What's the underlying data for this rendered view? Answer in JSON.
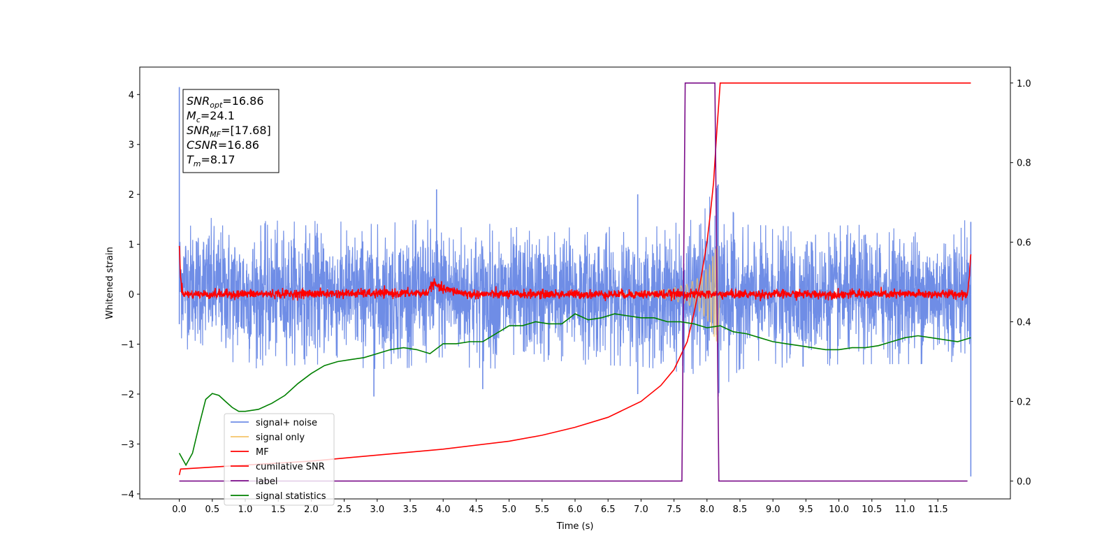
{
  "chart_data": {
    "type": "line",
    "title": "",
    "xlabel": "Time (s)",
    "ylabel": "Whitened strain",
    "xlim": [
      -0.6,
      12.6
    ],
    "ylim": [
      -4.1,
      4.55
    ],
    "y2lim": [
      -0.045,
      1.04
    ],
    "x_ticks": [
      0.0,
      0.5,
      1.0,
      1.5,
      2.0,
      2.5,
      3.0,
      3.5,
      4.0,
      4.5,
      5.0,
      5.5,
      6.0,
      6.5,
      7.0,
      7.5,
      8.0,
      8.5,
      9.0,
      9.5,
      10.0,
      10.5,
      11.0,
      11.5
    ],
    "x_tick_labels": [
      "0.0",
      "0.5",
      "1.0",
      "1.5",
      "2.0",
      "2.5",
      "3.0",
      "3.5",
      "4.0",
      "4.5",
      "5.0",
      "5.5",
      "6.0",
      "6.5",
      "7.0",
      "7.5",
      "8.0",
      "8.5",
      "9.0",
      "9.5",
      "10.0",
      "10.5",
      "11.0",
      "11.5"
    ],
    "y_ticks": [
      -4,
      -3,
      -2,
      -1,
      0,
      1,
      2,
      3,
      4
    ],
    "y_tick_labels": [
      "−4",
      "−3",
      "−2",
      "−1",
      "0",
      "1",
      "2",
      "3",
      "4"
    ],
    "y2_ticks": [
      0.0,
      0.2,
      0.4,
      0.6,
      0.8,
      1.0
    ],
    "y2_tick_labels": [
      "0.0",
      "0.2",
      "0.4",
      "0.6",
      "0.8",
      "1.0"
    ],
    "grid": false,
    "legend_position": "lower-left",
    "annotation": [
      {
        "base": "SNR",
        "sub": "opt",
        "rest": "=16.86"
      },
      {
        "base": "M",
        "sub": "c",
        "rest": "=24.1"
      },
      {
        "base": "SNR",
        "sub": "MF",
        "rest": "=[17.68]"
      },
      {
        "base": "CSNR",
        "sub": "",
        "rest": "=16.86"
      },
      {
        "base": "T",
        "sub": "m",
        "rest": "=8.17"
      }
    ],
    "series": [
      {
        "name": "signal+ noise",
        "axis": "left",
        "color": "#6f8de6",
        "kind": "noise",
        "x_range": [
          0.0,
          12.0
        ],
        "band_hi": [
          [
            0.0,
            1.6
          ],
          [
            1.0,
            1.45
          ],
          [
            2.0,
            1.5
          ],
          [
            3.0,
            1.4
          ],
          [
            4.0,
            1.55
          ],
          [
            5.0,
            1.35
          ],
          [
            6.0,
            1.4
          ],
          [
            7.0,
            1.3
          ],
          [
            7.8,
            1.5
          ],
          [
            8.17,
            2.2
          ],
          [
            8.5,
            1.4
          ],
          [
            9.5,
            1.35
          ],
          [
            10.5,
            1.4
          ],
          [
            11.5,
            1.4
          ],
          [
            12.0,
            1.5
          ]
        ],
        "band_lo": [
          [
            0.0,
            -1.05
          ],
          [
            1.0,
            -1.5
          ],
          [
            2.0,
            -1.4
          ],
          [
            3.0,
            -1.5
          ],
          [
            4.0,
            -1.45
          ],
          [
            5.0,
            -1.5
          ],
          [
            6.0,
            -1.4
          ],
          [
            7.0,
            -1.45
          ],
          [
            7.8,
            -1.6
          ],
          [
            8.17,
            -2.0
          ],
          [
            8.5,
            -1.5
          ],
          [
            9.5,
            -1.45
          ],
          [
            10.5,
            -1.4
          ],
          [
            11.5,
            -1.4
          ],
          [
            12.0,
            -1.3
          ]
        ],
        "spikes": [
          [
            0.0,
            4.15
          ],
          [
            0.0,
            -0.6
          ],
          [
            3.9,
            2.1
          ],
          [
            2.95,
            -2.05
          ],
          [
            4.6,
            -1.9
          ],
          [
            6.95,
            2.0
          ],
          [
            6.95,
            -2.0
          ],
          [
            8.17,
            2.2
          ],
          [
            8.17,
            -2.05
          ],
          [
            12.0,
            -3.65
          ],
          [
            12.0,
            1.45
          ]
        ]
      },
      {
        "name": "signal only",
        "axis": "left",
        "color": "#f5c56a",
        "kind": "chirp",
        "x_range": [
          6.6,
          8.2
        ],
        "envelope": [
          [
            6.6,
            0.02
          ],
          [
            7.0,
            0.05
          ],
          [
            7.4,
            0.1
          ],
          [
            7.7,
            0.2
          ],
          [
            7.9,
            0.35
          ],
          [
            8.05,
            0.6
          ],
          [
            8.12,
            0.9
          ],
          [
            8.17,
            1.0
          ],
          [
            8.2,
            0.0
          ]
        ]
      },
      {
        "name": "MF",
        "axis": "left",
        "color": "#ff0000",
        "kind": "mf",
        "x_range": [
          0.0,
          12.0
        ],
        "points": [
          [
            0.0,
            1.0
          ],
          [
            0.02,
            0.3
          ],
          [
            0.05,
            0.05
          ],
          [
            0.1,
            0.0
          ],
          [
            3.75,
            0.02
          ],
          [
            3.85,
            0.22
          ],
          [
            3.95,
            0.12
          ],
          [
            4.2,
            0.05
          ],
          [
            4.4,
            0.0
          ],
          [
            11.95,
            0.0
          ],
          [
            11.98,
            0.4
          ],
          [
            12.0,
            0.85
          ]
        ]
      },
      {
        "name": "cumilative SNR",
        "axis": "right",
        "color": "#ff0000",
        "kind": "line",
        "points": [
          [
            0.0,
            0.015
          ],
          [
            0.02,
            0.03
          ],
          [
            1.0,
            0.04
          ],
          [
            2.0,
            0.05
          ],
          [
            3.0,
            0.065
          ],
          [
            4.0,
            0.08
          ],
          [
            5.0,
            0.1
          ],
          [
            5.5,
            0.115
          ],
          [
            6.0,
            0.135
          ],
          [
            6.5,
            0.16
          ],
          [
            7.0,
            0.2
          ],
          [
            7.3,
            0.24
          ],
          [
            7.5,
            0.28
          ],
          [
            7.7,
            0.35
          ],
          [
            7.8,
            0.42
          ],
          [
            7.9,
            0.5
          ],
          [
            8.0,
            0.6
          ],
          [
            8.05,
            0.67
          ],
          [
            8.1,
            0.75
          ],
          [
            8.15,
            0.88
          ],
          [
            8.2,
            1.0
          ],
          [
            12.0,
            1.0
          ]
        ]
      },
      {
        "name": "label",
        "axis": "right",
        "color": "#7b0d8a",
        "kind": "line",
        "points": [
          [
            0.0,
            0.0
          ],
          [
            7.62,
            0.0
          ],
          [
            7.67,
            1.0
          ],
          [
            8.12,
            1.0
          ],
          [
            8.18,
            0.0
          ],
          [
            11.95,
            0.0
          ]
        ]
      },
      {
        "name": "signal statistics",
        "axis": "right",
        "color": "#008000",
        "kind": "line",
        "points": [
          [
            0.0,
            0.07
          ],
          [
            0.1,
            0.04
          ],
          [
            0.2,
            0.07
          ],
          [
            0.3,
            0.14
          ],
          [
            0.4,
            0.205
          ],
          [
            0.5,
            0.22
          ],
          [
            0.6,
            0.215
          ],
          [
            0.7,
            0.2
          ],
          [
            0.8,
            0.185
          ],
          [
            0.9,
            0.175
          ],
          [
            1.0,
            0.175
          ],
          [
            1.2,
            0.18
          ],
          [
            1.4,
            0.195
          ],
          [
            1.6,
            0.215
          ],
          [
            1.8,
            0.245
          ],
          [
            2.0,
            0.27
          ],
          [
            2.2,
            0.29
          ],
          [
            2.4,
            0.3
          ],
          [
            2.6,
            0.305
          ],
          [
            2.8,
            0.31
          ],
          [
            3.0,
            0.32
          ],
          [
            3.2,
            0.33
          ],
          [
            3.4,
            0.335
          ],
          [
            3.6,
            0.33
          ],
          [
            3.8,
            0.32
          ],
          [
            4.0,
            0.345
          ],
          [
            4.2,
            0.345
          ],
          [
            4.4,
            0.35
          ],
          [
            4.6,
            0.35
          ],
          [
            4.8,
            0.37
          ],
          [
            5.0,
            0.39
          ],
          [
            5.2,
            0.39
          ],
          [
            5.4,
            0.4
          ],
          [
            5.6,
            0.395
          ],
          [
            5.8,
            0.395
          ],
          [
            6.0,
            0.42
          ],
          [
            6.2,
            0.405
          ],
          [
            6.4,
            0.41
          ],
          [
            6.6,
            0.42
          ],
          [
            6.8,
            0.415
          ],
          [
            7.0,
            0.41
          ],
          [
            7.2,
            0.41
          ],
          [
            7.4,
            0.4
          ],
          [
            7.6,
            0.4
          ],
          [
            7.8,
            0.395
          ],
          [
            8.0,
            0.385
          ],
          [
            8.2,
            0.39
          ],
          [
            8.4,
            0.375
          ],
          [
            8.6,
            0.37
          ],
          [
            8.8,
            0.36
          ],
          [
            9.0,
            0.35
          ],
          [
            9.2,
            0.345
          ],
          [
            9.4,
            0.34
          ],
          [
            9.6,
            0.335
          ],
          [
            9.8,
            0.33
          ],
          [
            10.0,
            0.33
          ],
          [
            10.2,
            0.335
          ],
          [
            10.4,
            0.335
          ],
          [
            10.6,
            0.34
          ],
          [
            10.8,
            0.35
          ],
          [
            11.0,
            0.36
          ],
          [
            11.2,
            0.365
          ],
          [
            11.4,
            0.36
          ],
          [
            11.6,
            0.355
          ],
          [
            11.8,
            0.35
          ],
          [
            12.0,
            0.36
          ]
        ]
      }
    ]
  }
}
